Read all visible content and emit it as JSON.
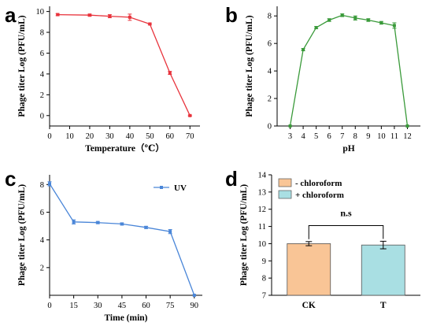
{
  "chart_data": [
    {
      "panel_label": "a",
      "type": "line",
      "xlabel": "Temperature（℃）",
      "ylabel": "Phage titer Log (PFU/mL)",
      "xlim": [
        0,
        75
      ],
      "ylim": [
        -1,
        10.5
      ],
      "xticks": [
        0,
        10,
        20,
        30,
        40,
        50,
        60,
        70
      ],
      "yticks": [
        0,
        2,
        4,
        6,
        8,
        10
      ],
      "color": "#e8333c",
      "marker": "square",
      "series": [
        {
          "x": [
            4,
            20,
            30,
            40,
            50,
            60,
            70
          ],
          "y": [
            9.7,
            9.65,
            9.55,
            9.45,
            8.8,
            4.1,
            0
          ],
          "err": [
            0.1,
            0.1,
            0.15,
            0.3,
            0.08,
            0.15,
            0.05
          ]
        }
      ]
    },
    {
      "panel_label": "b",
      "type": "line",
      "xlabel": "pH",
      "ylabel": "Phage titer Log (PFU/mL)",
      "xlim": [
        2,
        13
      ],
      "ylim": [
        0,
        8.7
      ],
      "xticks": [
        3,
        4,
        5,
        6,
        7,
        8,
        9,
        10,
        11,
        12
      ],
      "yticks": [
        0,
        2,
        4,
        6,
        8
      ],
      "color": "#3a9a3a",
      "marker": "square",
      "series": [
        {
          "x": [
            3,
            4,
            5,
            6,
            7,
            8,
            9,
            10,
            11,
            12
          ],
          "y": [
            0,
            5.55,
            7.15,
            7.7,
            8.05,
            7.85,
            7.7,
            7.5,
            7.3,
            0
          ],
          "err": [
            0,
            0.08,
            0.08,
            0.1,
            0.1,
            0.15,
            0.1,
            0.1,
            0.2,
            0
          ]
        }
      ]
    },
    {
      "panel_label": "c",
      "type": "line",
      "xlabel": "Time (min)",
      "ylabel": "Phage titer Log (PFU/mL)",
      "xlim": [
        0,
        95
      ],
      "ylim": [
        0,
        8.7
      ],
      "xticks": [
        0,
        15,
        30,
        45,
        60,
        75,
        90
      ],
      "yticks": [
        2,
        4,
        6,
        8
      ],
      "color": "#4a86d8",
      "marker": "square",
      "legend_position": "top-right",
      "series": [
        {
          "name": "UV",
          "x": [
            0,
            15,
            30,
            45,
            60,
            75,
            90
          ],
          "y": [
            8.05,
            5.3,
            5.25,
            5.15,
            4.9,
            4.6,
            0
          ],
          "err": [
            0.15,
            0.15,
            0.08,
            0.08,
            0.08,
            0.15,
            0
          ]
        }
      ]
    },
    {
      "panel_label": "d",
      "type": "bar",
      "ylabel": "Phage titer Log (PFU/mL)",
      "ylim": [
        7,
        14
      ],
      "yticks": [
        7,
        8,
        9,
        10,
        11,
        12,
        13,
        14
      ],
      "categories": [
        "CK",
        "T"
      ],
      "values": [
        10.0,
        9.92
      ],
      "err": [
        0.12,
        0.22
      ],
      "colors": [
        "#f9c596",
        "#a9dfe3"
      ],
      "legend_position": "top-left",
      "legend": [
        {
          "label": "- chloroform",
          "color": "#f9c596"
        },
        {
          "label": "+ chloroform",
          "color": "#a9dfe3"
        }
      ],
      "significance": "n.s"
    }
  ]
}
